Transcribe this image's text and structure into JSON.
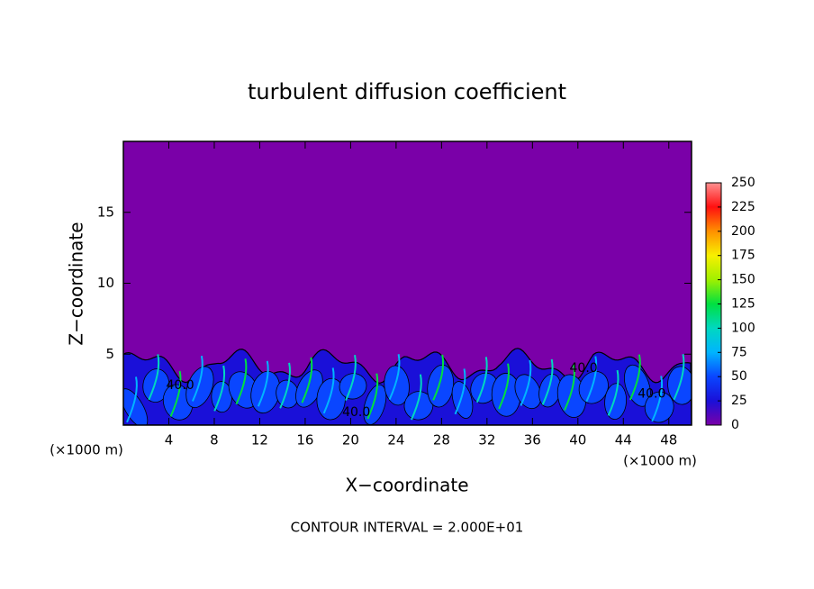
{
  "chart_data": {
    "type": "heatmap",
    "title": "turbulent diffusion coefficient",
    "x_label": "X−coordinate",
    "y_label": "Z−coordinate",
    "x_unit": "(×1000 m)",
    "footer": "CONTOUR INTERVAL = 2.000E+01",
    "xlim": [
      0,
      50
    ],
    "xticks": [
      4,
      8,
      12,
      16,
      20,
      24,
      28,
      32,
      36,
      40,
      44,
      48
    ],
    "ylim": [
      0,
      20
    ],
    "yticks": [
      5,
      10,
      15
    ],
    "colorbar": {
      "clim": [
        0,
        250
      ],
      "ticks": [
        0,
        25,
        50,
        75,
        100,
        125,
        150,
        175,
        200,
        225,
        250
      ],
      "colors": [
        "#7a00a8",
        "#1a10d8",
        "#0a46ff",
        "#00b4ff",
        "#00d8c0",
        "#00e040",
        "#a0f000",
        "#f8f000",
        "#ff9000",
        "#ff1010",
        "#ff9090"
      ]
    },
    "contour_labels": [
      {
        "value": 40,
        "label": "40.0",
        "x": 20.5,
        "z": 0.9
      },
      {
        "value": 40,
        "label": "40.0",
        "x": 40.5,
        "z": 4.0
      },
      {
        "value": 40,
        "label": "40.0",
        "x": 46.5,
        "z": 2.2
      },
      {
        "value": 40,
        "label": "40.0",
        "x": 5.0,
        "z": 2.8
      }
    ]
  }
}
